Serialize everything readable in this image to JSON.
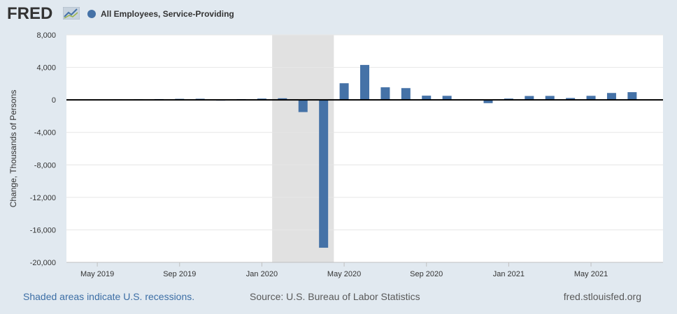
{
  "header": {
    "logo_text": "FRED",
    "series_name": "All Employees, Service-Providing",
    "series_color": "#4572a7"
  },
  "footer": {
    "recession_note": "Shaded areas indicate U.S. recessions.",
    "source": "Source: U.S. Bureau of Labor Statistics",
    "site": "fred.stlouisfed.org"
  },
  "chart_data": {
    "type": "bar",
    "title": "",
    "ylabel": "Change, Thousands of Persons",
    "xlabel": "",
    "ylim": [
      -20000,
      8000
    ],
    "yticks": [
      8000,
      4000,
      0,
      -4000,
      -8000,
      -12000,
      -16000,
      -20000
    ],
    "ytick_labels": [
      "8,000",
      "4,000",
      "0",
      "-4,000",
      "-8,000",
      "-12,000",
      "-16,000",
      "-20,000"
    ],
    "xtick_labels": [
      "May 2019",
      "Sep 2019",
      "Jan 2020",
      "May 2020",
      "Sep 2020",
      "Jan 2021",
      "May 2021"
    ],
    "xtick_positions": [
      "2019-05",
      "2019-09",
      "2020-01",
      "2020-05",
      "2020-09",
      "2021-01",
      "2021-05"
    ],
    "x_range": [
      "2019-04",
      "2021-09"
    ],
    "grid": true,
    "legend_position": "top-left",
    "recession": {
      "start": "2020-02",
      "end": "2020-04",
      "color": "#e1e1e1"
    },
    "bar_color": "#4572a7",
    "series": [
      {
        "name": "All Employees, Service-Providing",
        "x": [
          "2019-06",
          "2019-07",
          "2019-08",
          "2019-09",
          "2019-10",
          "2019-11",
          "2019-12",
          "2020-01",
          "2020-02",
          "2020-03",
          "2020-04",
          "2020-05",
          "2020-06",
          "2020-07",
          "2020-08",
          "2020-09",
          "2020-10",
          "2020-11",
          "2020-12",
          "2021-01",
          "2021-02",
          "2021-03",
          "2021-04",
          "2021-05",
          "2021-06",
          "2021-07",
          "2021-08"
        ],
        "values": [
          60,
          70,
          100,
          130,
          140,
          40,
          90,
          160,
          200,
          -1500,
          -18200,
          2050,
          4300,
          1550,
          1450,
          520,
          500,
          60,
          -400,
          160,
          480,
          490,
          230,
          500,
          850,
          950,
          0
        ]
      }
    ]
  }
}
